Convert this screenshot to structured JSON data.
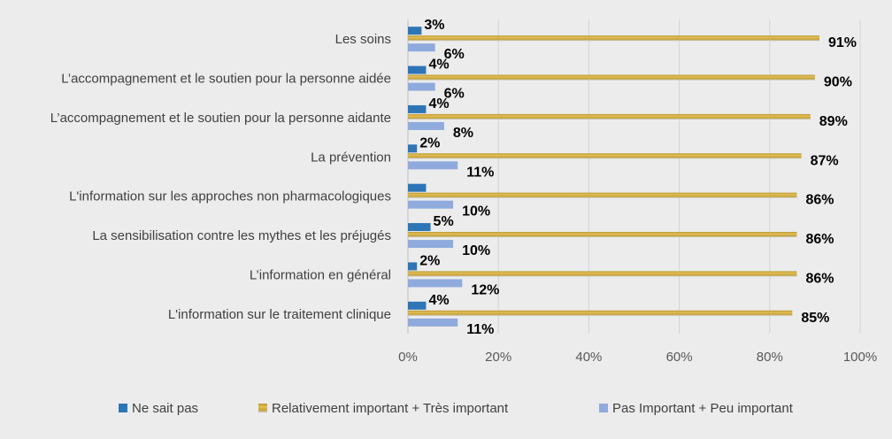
{
  "chart_data": {
    "type": "bar",
    "orientation": "horizontal",
    "categories": [
      "Les soins",
      "L’accompagnement et le soutien pour la personne aidée",
      "L’accompagnement et le soutien pour la personne aidante",
      "La prévention",
      "L'information sur les approches non pharmacologiques",
      "La sensibilisation contre les mythes et les préjugés",
      "L’information en général",
      "L'information sur le traitement clinique"
    ],
    "series": [
      {
        "name": "Ne sait pas",
        "color": "#2e75b6",
        "values": [
          3,
          4,
          4,
          2,
          4,
          5,
          2,
          4
        ],
        "labels": [
          "3%",
          "4%",
          "4%",
          "2%",
          "",
          "5%",
          "2%",
          "4%"
        ]
      },
      {
        "name": "Relativement important + Très important",
        "color": "#c9a232",
        "values": [
          91,
          90,
          89,
          87,
          86,
          86,
          86,
          85
        ],
        "labels": [
          "91%",
          "90%",
          "89%",
          "87%",
          "86%",
          "86%",
          "86%",
          "85%"
        ]
      },
      {
        "name": "Pas Important + Peu important",
        "color": "#8faadc",
        "values": [
          6,
          6,
          8,
          11,
          10,
          10,
          12,
          11
        ],
        "labels": [
          "6%",
          "6%",
          "8%",
          "11%",
          "10%",
          "10%",
          "12%",
          "11%"
        ]
      }
    ],
    "xlim": [
      0,
      100
    ],
    "xticks": [
      "0%",
      "20%",
      "40%",
      "60%",
      "80%",
      "100%"
    ],
    "grid": true,
    "legend_position": "bottom"
  }
}
